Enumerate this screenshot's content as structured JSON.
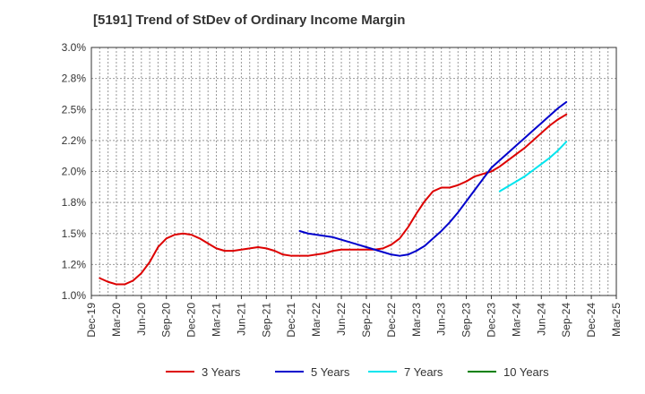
{
  "chart_data": {
    "type": "line",
    "title": "[5191]  Trend of StDev of Ordinary Income Margin",
    "xlabel": "",
    "ylabel": "",
    "y_tick_labels": [
      "1.0%",
      "1.2%",
      "1.5%",
      "1.8%",
      "2.0%",
      "2.2%",
      "2.5%",
      "2.8%",
      "3.0%"
    ],
    "y_ticks": [
      1.0,
      1.25,
      1.5,
      1.75,
      2.0,
      2.25,
      2.5,
      2.75,
      3.0
    ],
    "ylim": [
      1.0,
      3.0
    ],
    "x_tick_labels": [
      "Dec-19",
      "Mar-20",
      "Jun-20",
      "Sep-20",
      "Dec-20",
      "Mar-21",
      "Jun-21",
      "Sep-21",
      "Dec-21",
      "Mar-22",
      "Jun-22",
      "Sep-22",
      "Dec-22",
      "Mar-23",
      "Jun-23",
      "Sep-23",
      "Dec-23",
      "Mar-24",
      "Jun-24",
      "Sep-24",
      "Dec-24",
      "Mar-25"
    ],
    "grid": true,
    "legend_position": "bottom",
    "colors": {
      "3 Years": "#dd0000",
      "5 Years": "#0000cc",
      "7 Years": "#00e5ee",
      "10 Years": "#008000"
    },
    "series": [
      {
        "name": "3 Years",
        "color": "#dd0000",
        "start_index": 1,
        "values": [
          1.14,
          1.11,
          1.09,
          1.09,
          1.12,
          1.18,
          1.27,
          1.39,
          1.46,
          1.49,
          1.5,
          1.49,
          1.46,
          1.42,
          1.38,
          1.36,
          1.36,
          1.37,
          1.38,
          1.39,
          1.38,
          1.36,
          1.33,
          1.32,
          1.32,
          1.32,
          1.33,
          1.34,
          1.36,
          1.37,
          1.37,
          1.37,
          1.37,
          1.37,
          1.38,
          1.41,
          1.46,
          1.55,
          1.66,
          1.76,
          1.84,
          1.87,
          1.87,
          1.89,
          1.92,
          1.96,
          1.98,
          2.0,
          2.04,
          2.09,
          2.14,
          2.19,
          2.25,
          2.31,
          2.37,
          2.42,
          2.46
        ]
      },
      {
        "name": "5 Years",
        "color": "#0000cc",
        "start_index": 25,
        "values": [
          1.52,
          1.5,
          1.49,
          1.48,
          1.47,
          1.45,
          1.43,
          1.41,
          1.39,
          1.37,
          1.35,
          1.33,
          1.32,
          1.33,
          1.36,
          1.4,
          1.46,
          1.52,
          1.59,
          1.67,
          1.76,
          1.85,
          1.94,
          2.03,
          2.09,
          2.15,
          2.21,
          2.27,
          2.33,
          2.39,
          2.45,
          2.51,
          2.56
        ]
      },
      {
        "name": "7 Years",
        "color": "#00e5ee",
        "start_index": 49,
        "values": [
          1.84,
          1.88,
          1.92,
          1.96,
          2.01,
          2.06,
          2.11,
          2.17,
          2.24
        ]
      },
      {
        "name": "10 Years",
        "color": "#008000",
        "start_index": 0,
        "values": []
      }
    ]
  }
}
